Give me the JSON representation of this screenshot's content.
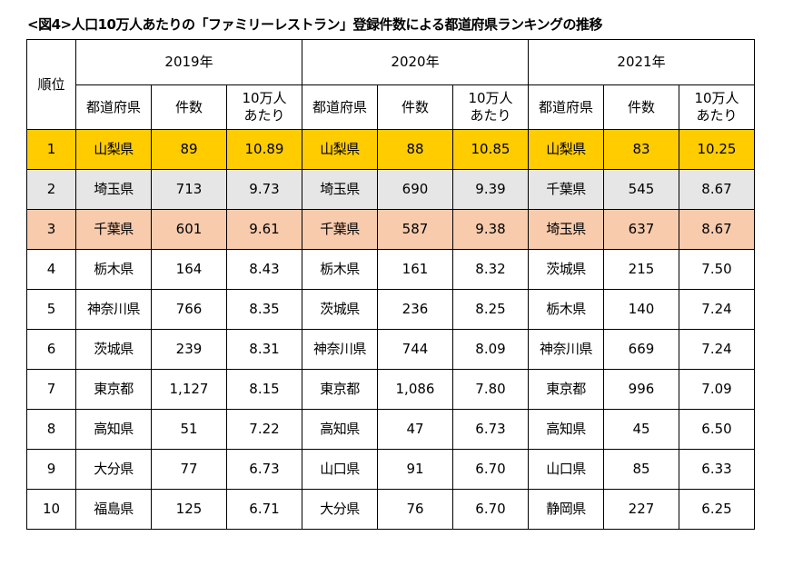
{
  "title": "<図4>人口10万人あたりの「ファミリーレストラン」登録件数による都道府県ランキングの推移",
  "header": {
    "rank": "順位",
    "years": [
      "2019年",
      "2020年",
      "2021年"
    ],
    "sub": [
      "都道府県",
      "件数",
      "10万人\nあたり"
    ]
  },
  "row_colors": {
    "1": "#FFCC00",
    "2": "#E7E6E6",
    "3": "#F8CBAD"
  },
  "rows": [
    {
      "rank": "1",
      "y2019": [
        "山梨県",
        "89",
        "10.89"
      ],
      "y2020": [
        "山梨県",
        "88",
        "10.85"
      ],
      "y2021": [
        "山梨県",
        "83",
        "10.25"
      ]
    },
    {
      "rank": "2",
      "y2019": [
        "埼玉県",
        "713",
        "9.73"
      ],
      "y2020": [
        "埼玉県",
        "690",
        "9.39"
      ],
      "y2021": [
        "千葉県",
        "545",
        "8.67"
      ]
    },
    {
      "rank": "3",
      "y2019": [
        "千葉県",
        "601",
        "9.61"
      ],
      "y2020": [
        "千葉県",
        "587",
        "9.38"
      ],
      "y2021": [
        "埼玉県",
        "637",
        "8.67"
      ]
    },
    {
      "rank": "4",
      "y2019": [
        "栃木県",
        "164",
        "8.43"
      ],
      "y2020": [
        "栃木県",
        "161",
        "8.32"
      ],
      "y2021": [
        "茨城県",
        "215",
        "7.50"
      ]
    },
    {
      "rank": "5",
      "y2019": [
        "神奈川県",
        "766",
        "8.35"
      ],
      "y2020": [
        "茨城県",
        "236",
        "8.25"
      ],
      "y2021": [
        "栃木県",
        "140",
        "7.24"
      ]
    },
    {
      "rank": "6",
      "y2019": [
        "茨城県",
        "239",
        "8.31"
      ],
      "y2020": [
        "神奈川県",
        "744",
        "8.09"
      ],
      "y2021": [
        "神奈川県",
        "669",
        "7.24"
      ]
    },
    {
      "rank": "7",
      "y2019": [
        "東京都",
        "1,127",
        "8.15"
      ],
      "y2020": [
        "東京都",
        "1,086",
        "7.80"
      ],
      "y2021": [
        "東京都",
        "996",
        "7.09"
      ]
    },
    {
      "rank": "8",
      "y2019": [
        "高知県",
        "51",
        "7.22"
      ],
      "y2020": [
        "高知県",
        "47",
        "6.73"
      ],
      "y2021": [
        "高知県",
        "45",
        "6.50"
      ]
    },
    {
      "rank": "9",
      "y2019": [
        "大分県",
        "77",
        "6.73"
      ],
      "y2020": [
        "山口県",
        "91",
        "6.70"
      ],
      "y2021": [
        "山口県",
        "85",
        "6.33"
      ]
    },
    {
      "rank": "10",
      "y2019": [
        "福島県",
        "125",
        "6.71"
      ],
      "y2020": [
        "大分県",
        "76",
        "6.70"
      ],
      "y2021": [
        "静岡県",
        "227",
        "6.25"
      ]
    }
  ]
}
